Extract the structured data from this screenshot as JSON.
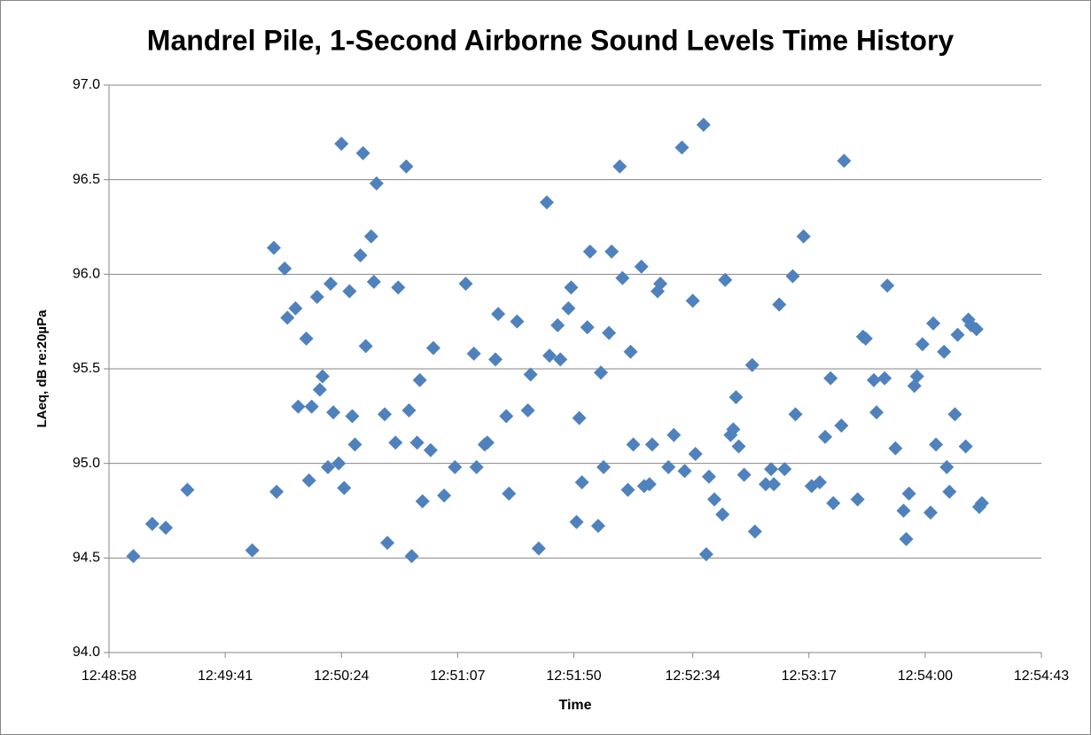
{
  "chart_data": {
    "type": "scatter",
    "title": "Mandrel Pile, 1-Second Airborne Sound Levels Time History",
    "x_label": "Time",
    "y_label": "LAeq, dB re:20µPa",
    "color": "#4f81bd",
    "grid": true,
    "xlim": [
      "12:48:58",
      "12:54:43"
    ],
    "xticks": [
      "12:48:58",
      "12:49:41",
      "12:50:24",
      "12:51:07",
      "12:51:50",
      "12:52:34",
      "12:53:17",
      "12:54:00",
      "12:54:43"
    ],
    "ylim": [
      94,
      97
    ],
    "yticks": [
      {
        "value": 94,
        "label": "94.0"
      },
      {
        "value": 94.5,
        "label": "94.5"
      },
      {
        "value": 95,
        "label": "95.0"
      },
      {
        "value": 95.5,
        "label": "95.5"
      },
      {
        "value": 96,
        "label": "96.0"
      },
      {
        "value": 96.5,
        "label": "96.5"
      },
      {
        "value": 97,
        "label": "97.0"
      }
    ],
    "x": [
      "12:49:07",
      "12:49:14",
      "12:49:19",
      "12:49:27",
      "12:49:51",
      "12:49:59",
      "12:50:00",
      "12:50:03",
      "12:50:04",
      "12:50:07",
      "12:50:08",
      "12:50:11",
      "12:50:12",
      "12:50:13",
      "12:50:15",
      "12:50:16",
      "12:50:17",
      "12:50:19",
      "12:50:20",
      "12:50:21",
      "12:50:23",
      "12:50:24",
      "12:50:25",
      "12:50:27",
      "12:50:28",
      "12:50:29",
      "12:50:31",
      "12:50:32",
      "12:50:33",
      "12:50:35",
      "12:50:36",
      "12:50:37",
      "12:50:40",
      "12:50:41",
      "12:50:44",
      "12:50:45",
      "12:50:48",
      "12:50:49",
      "12:50:50",
      "12:50:52",
      "12:50:53",
      "12:50:54",
      "12:50:57",
      "12:50:58",
      "12:51:02",
      "12:51:06",
      "12:51:10",
      "12:51:13",
      "12:51:14",
      "12:51:17",
      "12:51:18",
      "12:51:21",
      "12:51:22",
      "12:51:25",
      "12:51:26",
      "12:51:29",
      "12:51:33",
      "12:51:34",
      "12:51:37",
      "12:51:40",
      "12:51:41",
      "12:51:44",
      "12:51:45",
      "12:51:48",
      "12:51:49",
      "12:51:51",
      "12:51:52",
      "12:51:53",
      "12:51:55",
      "12:51:56",
      "12:51:59",
      "12:52:00",
      "12:52:01",
      "12:52:03",
      "12:52:04",
      "12:52:07",
      "12:52:08",
      "12:52:10",
      "12:52:11",
      "12:52:12",
      "12:52:15",
      "12:52:16",
      "12:52:18",
      "12:52:19",
      "12:52:21",
      "12:52:22",
      "12:52:25",
      "12:52:27",
      "12:52:30",
      "12:52:31",
      "12:52:34",
      "12:52:35",
      "12:52:38",
      "12:52:39",
      "12:52:40",
      "12:52:42",
      "12:52:45",
      "12:52:46",
      "12:52:48",
      "12:52:49",
      "12:52:50",
      "12:52:51",
      "12:52:53",
      "12:52:56",
      "12:52:57",
      "12:53:01",
      "12:53:03",
      "12:53:04",
      "12:53:06",
      "12:53:08",
      "12:53:11",
      "12:53:12",
      "12:53:15",
      "12:53:18",
      "12:53:21",
      "12:53:23",
      "12:53:25",
      "12:53:26",
      "12:53:29",
      "12:53:30",
      "12:53:35",
      "12:53:37",
      "12:53:38",
      "12:53:41",
      "12:53:42",
      "12:53:45",
      "12:53:46",
      "12:53:49",
      "12:53:52",
      "12:53:53",
      "12:53:54",
      "12:53:56",
      "12:53:57",
      "12:53:59",
      "12:54:02",
      "12:54:03",
      "12:54:04",
      "12:54:07",
      "12:54:08",
      "12:54:09",
      "12:54:11",
      "12:54:12",
      "12:54:15",
      "12:54:16",
      "12:54:17",
      "12:54:19",
      "12:54:20",
      "12:54:21"
    ],
    "values": [
      94.51,
      94.68,
      94.66,
      94.86,
      94.54,
      96.14,
      94.85,
      96.03,
      95.77,
      95.82,
      95.3,
      95.66,
      94.91,
      95.3,
      95.88,
      95.39,
      95.46,
      94.98,
      95.95,
      95.27,
      95.0,
      96.69,
      94.87,
      95.91,
      95.25,
      95.1,
      96.1,
      96.64,
      95.62,
      96.2,
      95.96,
      96.48,
      95.26,
      94.58,
      95.11,
      95.93,
      96.57,
      95.28,
      94.51,
      95.11,
      95.44,
      94.8,
      95.07,
      95.61,
      94.83,
      94.98,
      95.95,
      95.58,
      94.98,
      95.1,
      95.11,
      95.55,
      95.79,
      95.25,
      94.84,
      95.75,
      95.28,
      95.47,
      94.55,
      96.38,
      95.57,
      95.73,
      95.55,
      95.82,
      95.93,
      94.69,
      95.24,
      94.9,
      95.72,
      96.12,
      94.67,
      95.48,
      94.98,
      95.69,
      96.12,
      96.57,
      95.98,
      94.86,
      95.59,
      95.1,
      96.04,
      94.88,
      94.89,
      95.1,
      95.91,
      95.95,
      94.98,
      95.15,
      96.67,
      94.96,
      95.86,
      95.05,
      96.79,
      94.52,
      94.93,
      94.81,
      94.73,
      95.97,
      95.15,
      95.18,
      95.35,
      95.09,
      94.94,
      95.52,
      94.64,
      94.89,
      94.97,
      94.89,
      95.84,
      94.97,
      95.99,
      95.26,
      96.2,
      94.88,
      94.9,
      95.14,
      95.45,
      94.79,
      95.2,
      96.6,
      94.81,
      95.67,
      95.66,
      95.44,
      95.27,
      95.45,
      95.94,
      95.08,
      94.75,
      94.6,
      94.84,
      95.41,
      95.46,
      95.63,
      94.74,
      95.74,
      95.1,
      95.59,
      94.98,
      94.85,
      95.26,
      95.68,
      95.09,
      95.76,
      95.73,
      95.71,
      94.77,
      94.79
    ]
  }
}
